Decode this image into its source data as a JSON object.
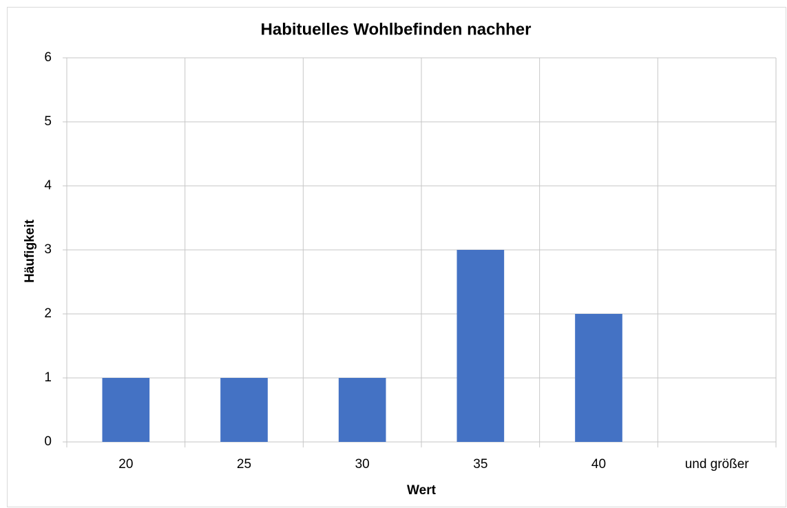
{
  "chart_data": {
    "type": "bar",
    "title": "Habituelles Wohlbefinden nachher",
    "x_label": "Wert",
    "y_label": "Häufigkeit",
    "categories": [
      "20",
      "25",
      "30",
      "35",
      "40",
      "und größer"
    ],
    "values": [
      1,
      1,
      1,
      3,
      2,
      0
    ],
    "color": "#4472c4",
    "ylim": [
      0,
      6
    ],
    "yticks": [
      0,
      1,
      2,
      3,
      4,
      5,
      6
    ],
    "grid": true
  }
}
